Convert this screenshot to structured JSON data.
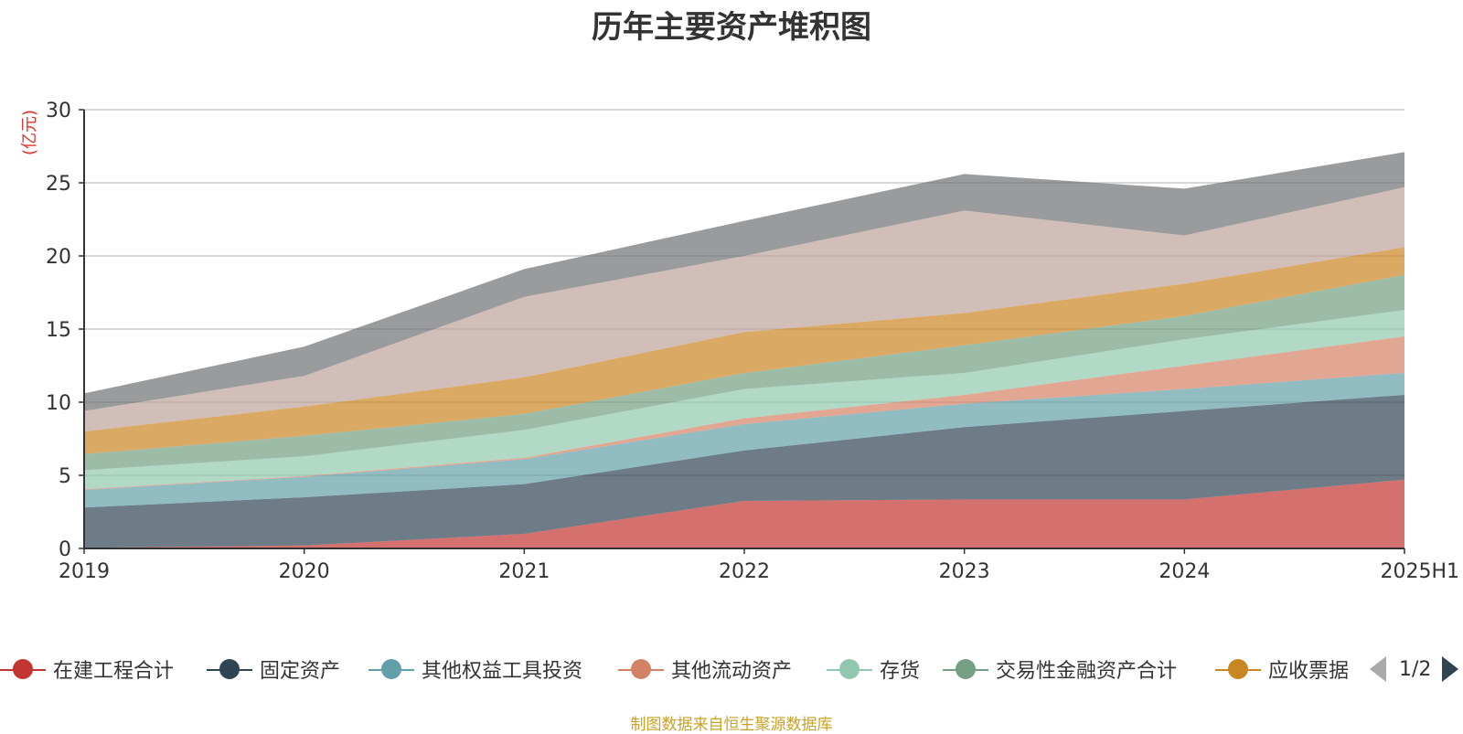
{
  "chart_data": {
    "type": "area",
    "stacked": true,
    "title": "历年主要资产堆积图",
    "ylabel": "(亿元)",
    "xlabel": "",
    "categories": [
      "2019",
      "2020",
      "2021",
      "2022",
      "2023",
      "2024",
      "2025H1"
    ],
    "ylim": [
      0,
      30
    ],
    "yticks": [
      0,
      5,
      10,
      15,
      20,
      25,
      30
    ],
    "grid": true,
    "legend_position": "bottom",
    "series": [
      {
        "name": "在建工程合计",
        "color": "#c23531",
        "values": [
          0.05,
          0.2,
          1.0,
          3.25,
          3.35,
          3.35,
          4.7
        ]
      },
      {
        "name": "固定资产",
        "color": "#2f4554",
        "values": [
          2.75,
          3.3,
          3.4,
          3.45,
          4.95,
          6.05,
          5.8
        ]
      },
      {
        "name": "其他权益工具投资",
        "color": "#61a0a8",
        "values": [
          1.2,
          1.4,
          1.7,
          1.8,
          1.6,
          1.5,
          1.5
        ]
      },
      {
        "name": "其他流动资产",
        "color": "#d48265",
        "values": [
          0.05,
          0.05,
          0.1,
          0.4,
          0.6,
          1.6,
          2.5
        ]
      },
      {
        "name": "存货",
        "color": "#91c7ae",
        "values": [
          1.3,
          1.35,
          1.9,
          2.0,
          1.5,
          1.8,
          1.8
        ]
      },
      {
        "name": "交易性金融资产合计",
        "color": "#749f83",
        "values": [
          1.1,
          1.4,
          1.1,
          1.1,
          1.9,
          1.6,
          2.4
        ]
      },
      {
        "name": "应收票据",
        "color": "#ca8622",
        "values": [
          1.55,
          2.0,
          2.5,
          2.8,
          2.2,
          2.2,
          1.9
        ]
      },
      {
        "color": "#bda29a",
        "values": [
          1.4,
          2.1,
          5.5,
          5.2,
          7.0,
          3.3,
          4.1
        ]
      },
      {
        "color": "#6e7074",
        "values": [
          1.2,
          2.0,
          1.9,
          2.4,
          2.5,
          3.2,
          2.4
        ]
      }
    ]
  },
  "legend": {
    "items": [
      {
        "label": "在建工程合计",
        "color": "#c23531"
      },
      {
        "label": "固定资产",
        "color": "#2f4554"
      },
      {
        "label": "其他权益工具投资",
        "color": "#61a0a8"
      },
      {
        "label": "其他流动资产",
        "color": "#d48265"
      },
      {
        "label": "存货",
        "color": "#91c7ae"
      },
      {
        "label": "交易性金融资产合计",
        "color": "#749f83"
      },
      {
        "label": "应收票据",
        "color": "#ca8622"
      }
    ],
    "page_text": "1/2"
  },
  "footer": {
    "source": "制图数据来自恒生聚源数据库"
  }
}
